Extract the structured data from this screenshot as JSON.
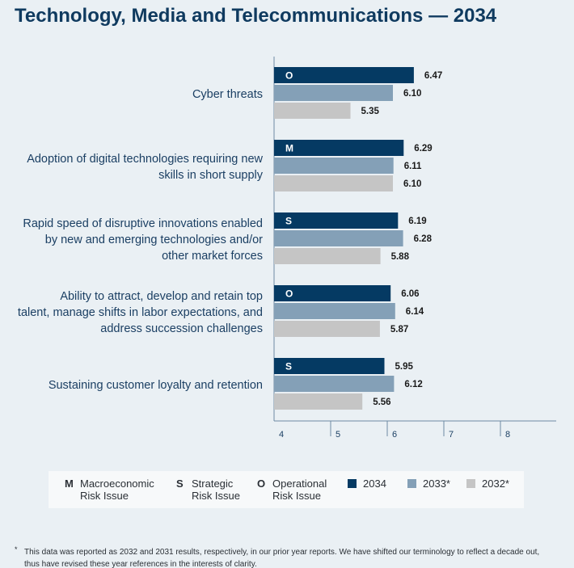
{
  "title": "Technology, Media and Telecommunications — 2034",
  "chart_data": {
    "type": "bar",
    "orientation": "horizontal",
    "title": "Technology, Media and Telecommunications — 2034",
    "categories": [
      [
        "Cyber threats"
      ],
      [
        "Adoption of digital technologies requiring new",
        "skills in short supply"
      ],
      [
        "Rapid speed of disruptive innovations enabled",
        "by new and emerging technologies and/or",
        "other market forces"
      ],
      [
        "Ability to attract, develop and retain top",
        "talent, manage shifts in labor expectations, and",
        "address succession challenges"
      ],
      [
        "Sustaining customer loyalty and retention"
      ]
    ],
    "risk_codes": [
      "O",
      "M",
      "S",
      "O",
      "S"
    ],
    "series": [
      {
        "name": "2034",
        "color": "#053a63",
        "values": [
          6.47,
          6.29,
          6.19,
          6.06,
          5.95
        ],
        "labels": [
          "6.47",
          "6.29",
          "6.19",
          "6.06",
          "5.95"
        ]
      },
      {
        "name": "2033*",
        "color": "#84a0b7",
        "values": [
          6.1,
          6.11,
          6.28,
          6.14,
          6.12
        ],
        "labels": [
          "6.10",
          "6.11",
          "6.28",
          "6.14",
          "6.12"
        ]
      },
      {
        "name": "2032*",
        "color": "#c5c5c5",
        "values": [
          5.35,
          6.1,
          5.88,
          5.87,
          5.56
        ],
        "labels": [
          "5.35",
          "6.10",
          "5.88",
          "5.87",
          "5.56"
        ]
      }
    ],
    "x_ticks": [
      "4",
      "5",
      "6",
      "7",
      "8"
    ],
    "xlim": [
      4,
      9
    ],
    "grid": false
  },
  "legend": {
    "risk_types": [
      {
        "letter": "M",
        "label": "Macroeconomic Risk Issue"
      },
      {
        "letter": "S",
        "label": "Strategic Risk Issue"
      },
      {
        "letter": "O",
        "label": "Operational Risk Issue"
      }
    ],
    "years": [
      {
        "label": "2034",
        "color": "#053a63"
      },
      {
        "label": "2033*",
        "color": "#84a0b7"
      },
      {
        "label": "2032*",
        "color": "#c5c5c5"
      }
    ]
  },
  "footnote": {
    "symbol": "*",
    "text": "This data was reported as 2032 and 2031 results, respectively, in our prior year reports. We have shifted our terminology to reflect a decade out, thus have revised these year references in the interests of clarity."
  }
}
